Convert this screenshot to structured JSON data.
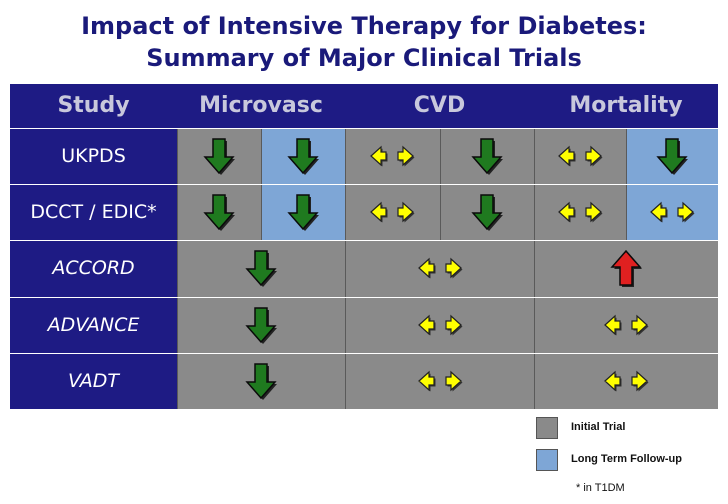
{
  "title": {
    "line1": "Impact of Intensive Therapy for Diabetes:",
    "line2": "Summary of Major Clinical Trials"
  },
  "headers": {
    "study": "Study",
    "microvasc": "Microvasc",
    "cvd": "CVD",
    "mortality": "Mortality"
  },
  "rows": [
    {
      "study": "UKPDS",
      "italic": false,
      "microvasc": [
        "down",
        "down"
      ],
      "cvd": [
        "neutral",
        "down"
      ],
      "mortality": [
        "neutral",
        "down"
      ]
    },
    {
      "study": "DCCT / EDIC*",
      "italic": false,
      "microvasc": [
        "down",
        "down"
      ],
      "cvd": [
        "neutral",
        "down"
      ],
      "mortality": [
        "neutral",
        "neutral"
      ]
    },
    {
      "study": "ACCORD",
      "italic": true,
      "microvasc": [
        "down"
      ],
      "cvd": [
        "neutral"
      ],
      "mortality": [
        "up"
      ]
    },
    {
      "study": "ADVANCE",
      "italic": true,
      "microvasc": [
        "down"
      ],
      "cvd": [
        "neutral"
      ],
      "mortality": [
        "neutral"
      ]
    },
    {
      "study": "VADT",
      "italic": true,
      "microvasc": [
        "down"
      ],
      "cvd": [
        "neutral"
      ],
      "mortality": [
        "neutral"
      ]
    }
  ],
  "legend": {
    "initial_trial": "Initial Trial",
    "long_term": "Long Term Follow-up",
    "footnote": "* in T1DM"
  },
  "colors": {
    "header_bg": "#1e1b84",
    "initial": "#8a8a8a",
    "followup": "#7ea6d6",
    "down_arrow": "#1f7a1f",
    "neutral_arrow": "#ffff00",
    "up_arrow": "#e02020"
  }
}
